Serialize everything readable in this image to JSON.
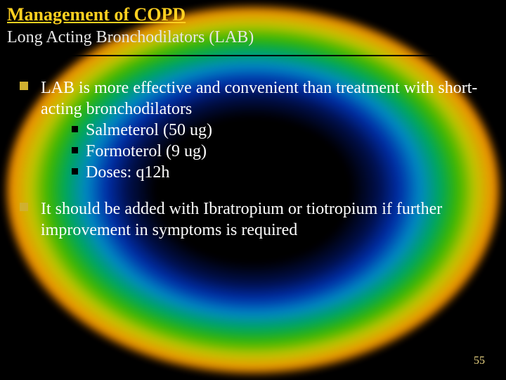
{
  "colors": {
    "background": "#000000",
    "title_color": "#ffd020",
    "subtitle_color": "#e6e6e6",
    "body_text_color": "#ffffff",
    "bullet_square_color": "#d0b030",
    "sub_bullet_square_color": "#000000",
    "page_number_color": "#e6d080",
    "divider_color": "#000000"
  },
  "typography": {
    "font_family": "Times New Roman",
    "title_size_pt": 20,
    "subtitle_size_pt": 18,
    "body_size_pt": 18
  },
  "title": "Management of COPD",
  "subtitle": "Long Acting Bronchodilators (LAB)",
  "bullets": [
    {
      "text": "LAB is more effective and convenient than treatment with short-acting bronchodilators",
      "sub": [
        "Salmeterol (50 ug)",
        "Formoterol (9 ug)",
        "Doses: q12h"
      ]
    },
    {
      "text": "It should be added with Ibratropium or tiotropium if further improvement in symptoms is required",
      "sub": []
    }
  ],
  "page_number": "55"
}
